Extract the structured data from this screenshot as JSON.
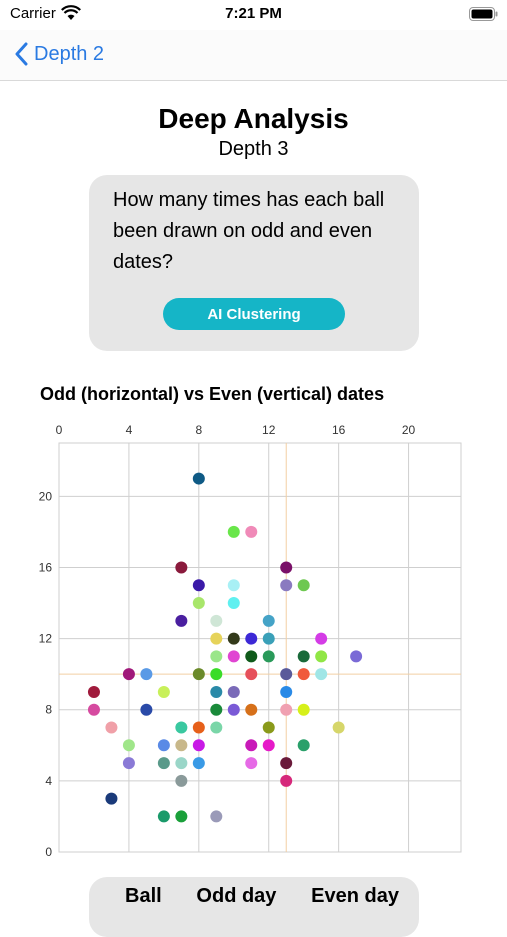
{
  "status": {
    "carrier": "Carrier",
    "time": "7:21 PM"
  },
  "nav": {
    "back_label": "Depth 2"
  },
  "header": {
    "title": "Deep Analysis",
    "subtitle": "Depth 3"
  },
  "question": {
    "text": "How many times has each ball been drawn on odd and even dates?",
    "button_label": "AI Clustering"
  },
  "chart_title": "Odd (horizontal) vs Even (vertical) dates",
  "chart_data": {
    "type": "scatter",
    "xlim": [
      0,
      23
    ],
    "ylim": [
      0,
      23
    ],
    "x_ticks": [
      0,
      4,
      8,
      12,
      16,
      20
    ],
    "y_ticks": [
      0,
      4,
      8,
      12,
      16,
      20
    ],
    "grid": true,
    "reference_lines": {
      "x": 13,
      "y": 10,
      "color": "#f2cfa3"
    },
    "points": [
      {
        "x": 8,
        "y": 21,
        "color": "#0f5a85"
      },
      {
        "x": 10,
        "y": 18,
        "color": "#69e64a"
      },
      {
        "x": 11,
        "y": 18,
        "color": "#f08ab8"
      },
      {
        "x": 7,
        "y": 16,
        "color": "#8a1a3c"
      },
      {
        "x": 13,
        "y": 16,
        "color": "#7a1068"
      },
      {
        "x": 8,
        "y": 15,
        "color": "#3b1aa8"
      },
      {
        "x": 10,
        "y": 15,
        "color": "#a8f0f5"
      },
      {
        "x": 13,
        "y": 15,
        "color": "#8a7ac0"
      },
      {
        "x": 14,
        "y": 15,
        "color": "#6ec851"
      },
      {
        "x": 8,
        "y": 14,
        "color": "#a8e66b"
      },
      {
        "x": 10,
        "y": 14,
        "color": "#5ff0f0"
      },
      {
        "x": 7,
        "y": 13,
        "color": "#4a1fa0"
      },
      {
        "x": 9,
        "y": 13,
        "color": "#cfe6d6"
      },
      {
        "x": 12,
        "y": 13,
        "color": "#45a3c7"
      },
      {
        "x": 9,
        "y": 12,
        "color": "#e6d35a"
      },
      {
        "x": 10,
        "y": 12,
        "color": "#333a1a"
      },
      {
        "x": 11,
        "y": 12,
        "color": "#3c28d6"
      },
      {
        "x": 12,
        "y": 12,
        "color": "#3aa0b8"
      },
      {
        "x": 15,
        "y": 12,
        "color": "#d43ce6"
      },
      {
        "x": 9,
        "y": 11,
        "color": "#9ae68a"
      },
      {
        "x": 10,
        "y": 11,
        "color": "#e045d2"
      },
      {
        "x": 11,
        "y": 11,
        "color": "#0f5a1a"
      },
      {
        "x": 12,
        "y": 11,
        "color": "#2a9a5a"
      },
      {
        "x": 14,
        "y": 11,
        "color": "#1a6a3a"
      },
      {
        "x": 15,
        "y": 11,
        "color": "#90e645"
      },
      {
        "x": 17,
        "y": 11,
        "color": "#7a6ad6"
      },
      {
        "x": 4,
        "y": 10,
        "color": "#a0187a"
      },
      {
        "x": 5,
        "y": 10,
        "color": "#5a9ae6"
      },
      {
        "x": 8,
        "y": 10,
        "color": "#6b8a2a"
      },
      {
        "x": 9,
        "y": 10,
        "color": "#3adc28"
      },
      {
        "x": 11,
        "y": 10,
        "color": "#e6505a"
      },
      {
        "x": 13,
        "y": 10,
        "color": "#5a5a9a"
      },
      {
        "x": 14,
        "y": 10,
        "color": "#f05a3c"
      },
      {
        "x": 15,
        "y": 10,
        "color": "#a0e6e6"
      },
      {
        "x": 2,
        "y": 9,
        "color": "#a01a3c"
      },
      {
        "x": 6,
        "y": 9,
        "color": "#c8f05a"
      },
      {
        "x": 9,
        "y": 9,
        "color": "#2a8aa8"
      },
      {
        "x": 10,
        "y": 9,
        "color": "#7a6ab8"
      },
      {
        "x": 13,
        "y": 9,
        "color": "#2a8ae6"
      },
      {
        "x": 2,
        "y": 8,
        "color": "#d64aa0"
      },
      {
        "x": 5,
        "y": 8,
        "color": "#2a4aa8"
      },
      {
        "x": 9,
        "y": 8,
        "color": "#1a8a3a"
      },
      {
        "x": 10,
        "y": 8,
        "color": "#7a5ad6"
      },
      {
        "x": 11,
        "y": 8,
        "color": "#d6701a"
      },
      {
        "x": 13,
        "y": 8,
        "color": "#f0a0b0"
      },
      {
        "x": 14,
        "y": 8,
        "color": "#d6f01a"
      },
      {
        "x": 3,
        "y": 7,
        "color": "#f0a0a8"
      },
      {
        "x": 7,
        "y": 7,
        "color": "#3ac8a0"
      },
      {
        "x": 8,
        "y": 7,
        "color": "#e6601a"
      },
      {
        "x": 9,
        "y": 7,
        "color": "#7ad6a8"
      },
      {
        "x": 12,
        "y": 7,
        "color": "#8a9a1a"
      },
      {
        "x": 16,
        "y": 7,
        "color": "#d6d66a"
      },
      {
        "x": 4,
        "y": 6,
        "color": "#a0e68a"
      },
      {
        "x": 6,
        "y": 6,
        "color": "#5a8ae6"
      },
      {
        "x": 7,
        "y": 6,
        "color": "#c8b88a"
      },
      {
        "x": 8,
        "y": 6,
        "color": "#c81ae6"
      },
      {
        "x": 11,
        "y": 6,
        "color": "#c81ab8"
      },
      {
        "x": 12,
        "y": 6,
        "color": "#e61ac8"
      },
      {
        "x": 14,
        "y": 6,
        "color": "#2aa06a"
      },
      {
        "x": 4,
        "y": 5,
        "color": "#8a7ad6"
      },
      {
        "x": 6,
        "y": 5,
        "color": "#5a9a8a"
      },
      {
        "x": 7,
        "y": 5,
        "color": "#9ad6c8"
      },
      {
        "x": 8,
        "y": 5,
        "color": "#3a9ae6"
      },
      {
        "x": 11,
        "y": 5,
        "color": "#e66ae6"
      },
      {
        "x": 13,
        "y": 5,
        "color": "#6a1a3a"
      },
      {
        "x": 7,
        "y": 4,
        "color": "#8a9a9a"
      },
      {
        "x": 13,
        "y": 4,
        "color": "#d6287a"
      },
      {
        "x": 3,
        "y": 3,
        "color": "#1a3a7a"
      },
      {
        "x": 6,
        "y": 2,
        "color": "#1a9a6a"
      },
      {
        "x": 7,
        "y": 2,
        "color": "#1aa03a"
      },
      {
        "x": 9,
        "y": 2,
        "color": "#9a9ab8"
      }
    ]
  },
  "table": {
    "headers": [
      "Ball",
      "Odd day",
      "Even day"
    ]
  },
  "colors": {
    "accent": "#2a7ae2",
    "button": "#15b5c7",
    "card": "#e6e6e6"
  }
}
